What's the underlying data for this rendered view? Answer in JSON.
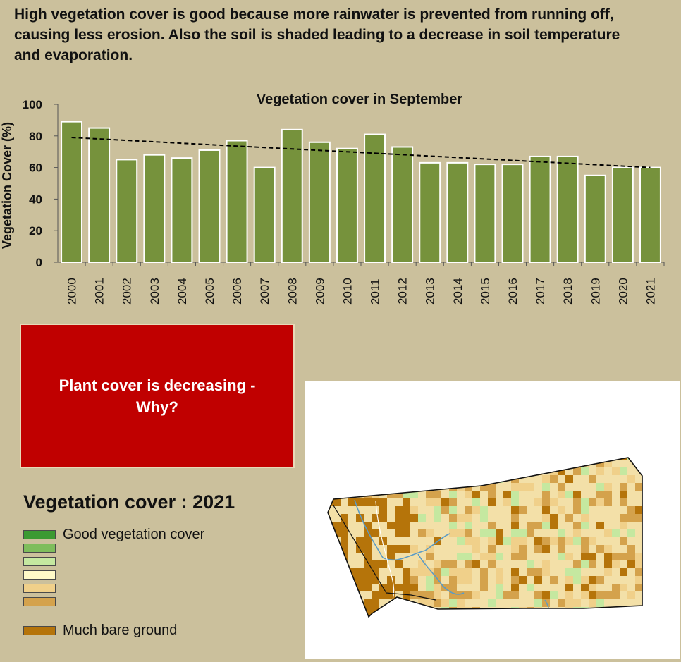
{
  "intro_text": "High vegetation cover is good because more rainwater is prevented from running off, causing less erosion. Also the soil is shaded leading to a decrease in soil temperature and evaporation.",
  "chart_data": {
    "type": "bar",
    "title": "Vegetation cover in September",
    "xlabel": "",
    "ylabel": "Vegetation Cover (%)",
    "ylim": [
      0,
      100
    ],
    "yticks": [
      0,
      20,
      40,
      60,
      80,
      100
    ],
    "categories": [
      "2000",
      "2001",
      "2002",
      "2003",
      "2004",
      "2005",
      "2006",
      "2007",
      "2008",
      "2009",
      "2010",
      "2011",
      "2012",
      "2013",
      "2014",
      "2015",
      "2016",
      "2017",
      "2018",
      "2019",
      "2020",
      "2021"
    ],
    "values": [
      89,
      85,
      65,
      68,
      66,
      71,
      77,
      60,
      84,
      76,
      72,
      81,
      73,
      63,
      63,
      62,
      62,
      67,
      67,
      55,
      60,
      60
    ],
    "trendline": {
      "style": "dashed linear",
      "start": 79,
      "end": 60
    },
    "bar_color": "#76923c",
    "grid": false
  },
  "alert": {
    "line1": "Plant cover is decreasing -",
    "line2": "Why?",
    "color": "#c00000"
  },
  "legend": {
    "title": "Vegetation cover : 2021",
    "items": [
      {
        "label": "Good vegetation cover",
        "color": "#3b9a32"
      },
      {
        "label": "",
        "color": "#7ebd5c"
      },
      {
        "label": "",
        "color": "#c5e8a0"
      },
      {
        "label": "",
        "color": "#fffac8"
      },
      {
        "label": "",
        "color": "#f0d08a"
      },
      {
        "label": "",
        "color": "#d4a24c"
      },
      {
        "label": "Much bare ground",
        "color": "#b5740a"
      }
    ]
  }
}
